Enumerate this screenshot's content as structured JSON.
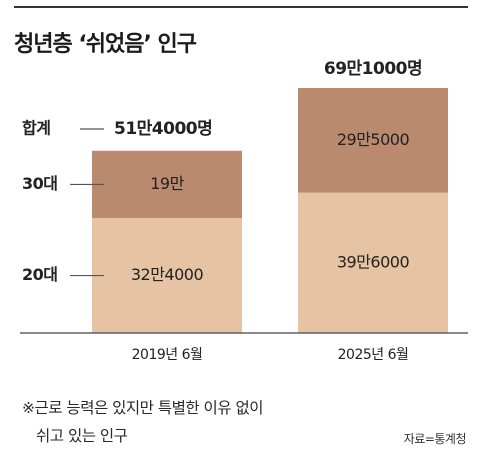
{
  "title": "청년층 ‘쉬었음’ 인구",
  "footnote": {
    "line1": "※근로 능력은 있지만 특별한 이유 없이",
    "line2": "쉬고 있는 인구"
  },
  "source": "자료=통계청",
  "colors": {
    "age_20s": "#e6c3a3",
    "age_30s": "#ba8a6f",
    "text": "#222222",
    "axis": "#555555"
  },
  "chart_data": {
    "type": "bar",
    "stacked": true,
    "unit": "명",
    "categories": [
      "2019년 6월",
      "2025년 6월"
    ],
    "series": [
      {
        "name": "20대",
        "values": [
          324000,
          396000
        ],
        "labels": [
          "32만4000",
          "39만6000"
        ]
      },
      {
        "name": "30대",
        "values": [
          190000,
          295000
        ],
        "labels": [
          "19만",
          "29만5000"
        ]
      }
    ],
    "totals": [
      514000,
      691000
    ],
    "total_labels": [
      "51만4000명",
      "69만1000명"
    ],
    "total_legend": "합계",
    "ylim": [
      0,
      691000
    ]
  }
}
